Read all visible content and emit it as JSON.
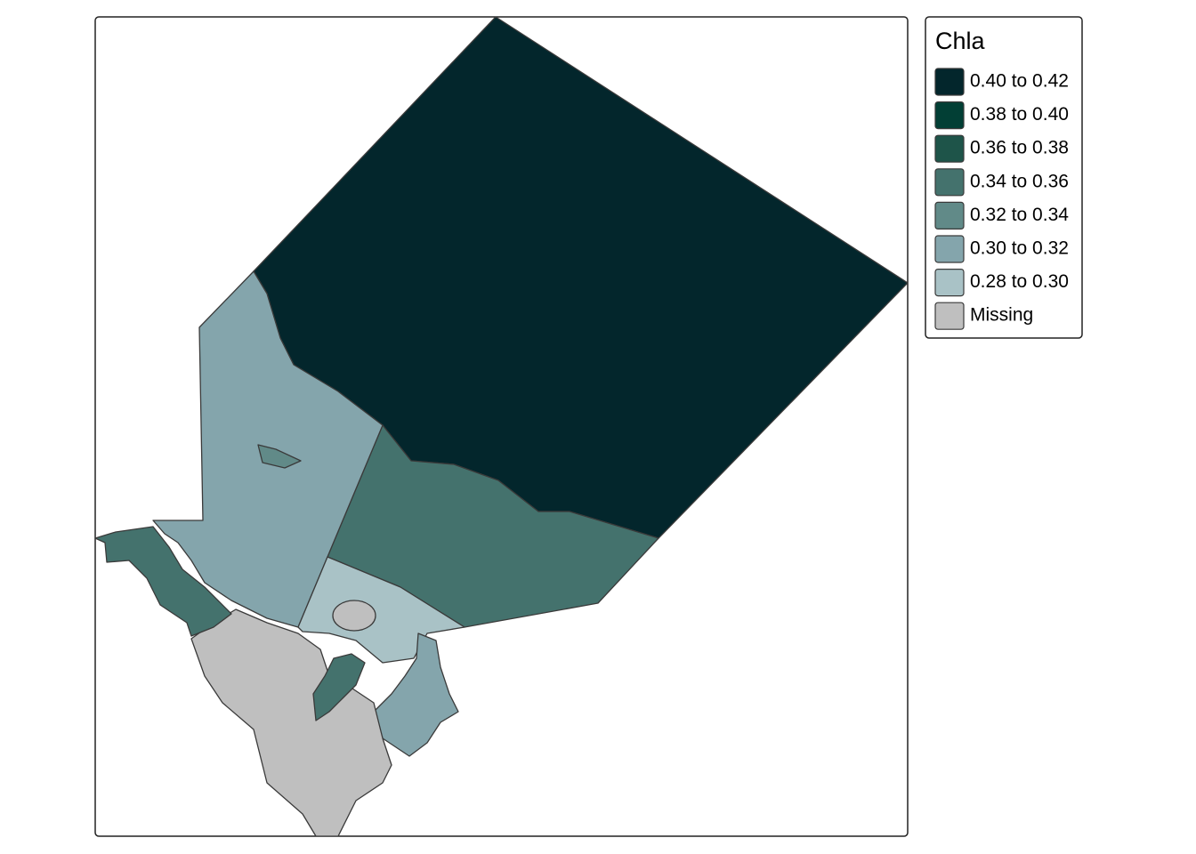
{
  "legend": {
    "title": "Chla",
    "items": [
      {
        "label": "0.40 to 0.42",
        "color": "#03262c"
      },
      {
        "label": "0.38 to 0.40",
        "color": "#023f35"
      },
      {
        "label": "0.36 to 0.38",
        "color": "#1e5449"
      },
      {
        "label": "0.34 to 0.36",
        "color": "#44726d"
      },
      {
        "label": "0.32 to 0.34",
        "color": "#618a88"
      },
      {
        "label": "0.30 to 0.32",
        "color": "#84a5ac"
      },
      {
        "label": "0.28 to 0.30",
        "color": "#a9c2c6"
      },
      {
        "label": "Missing",
        "color": "#bfbfbf"
      }
    ]
  }
}
